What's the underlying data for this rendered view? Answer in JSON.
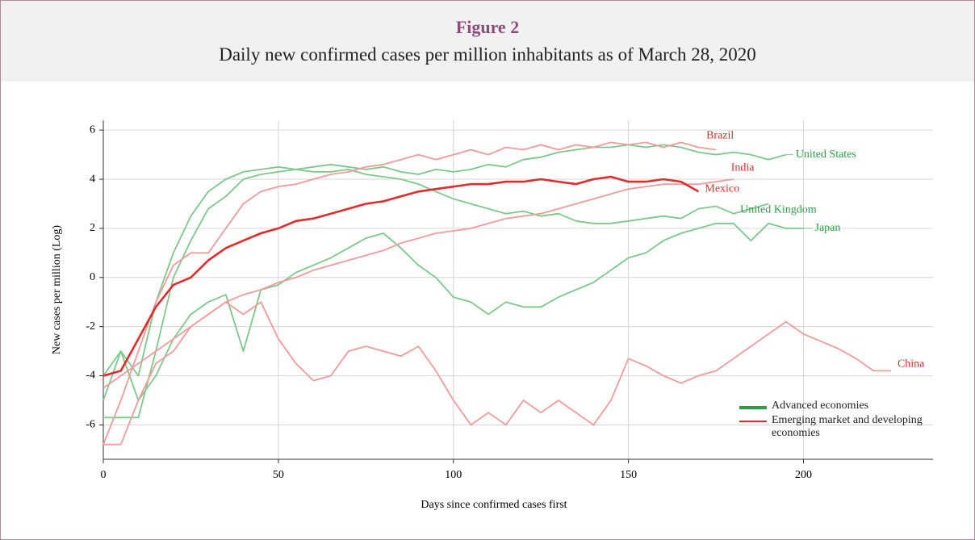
{
  "figure_label": "Figure 2",
  "chart_data": {
    "type": "line",
    "title": "Daily new confirmed cases per million inhabitants as of March 28, 2020",
    "x_label": "Days since confirmed cases first",
    "y_label": "New cases per million (Log)",
    "xlim": [
      0,
      237
    ],
    "ylim": [
      -7.4,
      6.4
    ],
    "xticks": [
      0,
      50,
      100,
      150,
      200
    ],
    "yticks": [
      -6,
      -4,
      -2,
      0,
      2,
      4,
      6
    ],
    "grid": true,
    "legend_position": "lower right",
    "legend": [
      {
        "label": "Advanced economies",
        "color": "#2e9e45"
      },
      {
        "label": "Emerging market and developing economies",
        "color": "#e32b2b"
      }
    ],
    "x": [
      0,
      5,
      10,
      15,
      20,
      25,
      30,
      35,
      40,
      45,
      50,
      55,
      60,
      65,
      70,
      75,
      80,
      85,
      90,
      95,
      100,
      105,
      110,
      115,
      120,
      125,
      130,
      135,
      140,
      145,
      150,
      155,
      160,
      165,
      170,
      175,
      180,
      185,
      190,
      195,
      200,
      205,
      210,
      215,
      220,
      225
    ],
    "series": [
      {
        "name": "United States",
        "color": "#7cc98a",
        "width": 1.8,
        "values": [
          -5,
          -3,
          -4,
          -1,
          1,
          2.5,
          3.5,
          4,
          4.3,
          4.4,
          4.5,
          4.4,
          4.5,
          4.6,
          4.5,
          4.4,
          4.5,
          4.3,
          4.2,
          4.4,
          4.3,
          4.4,
          4.6,
          4.5,
          4.8,
          4.9,
          5.1,
          5.2,
          5.3,
          5.3,
          5.4,
          5.3,
          5.4,
          5.3,
          5.1,
          5,
          5.1,
          5,
          4.8,
          5,
          null,
          null,
          null,
          null,
          null,
          null
        ]
      },
      {
        "name": "United Kingdom",
        "color": "#7cc98a",
        "width": 1.8,
        "values": [
          -5.7,
          -5.7,
          -5.7,
          -3,
          0,
          1.5,
          2.8,
          3.3,
          4,
          4.2,
          4.3,
          4.4,
          4.3,
          4.3,
          4.4,
          4.2,
          4.1,
          4,
          3.8,
          3.5,
          3.2,
          3,
          2.8,
          2.6,
          2.7,
          2.5,
          2.6,
          2.3,
          2.2,
          2.2,
          2.3,
          2.4,
          2.5,
          2.4,
          2.8,
          2.9,
          2.6,
          2.8,
          3,
          null,
          null,
          null,
          null,
          null,
          null,
          null
        ]
      },
      {
        "name": "Japan",
        "color": "#7cc98a",
        "width": 1.8,
        "values": [
          -4,
          -3,
          -5,
          -4,
          -2.5,
          -1.5,
          -1,
          -0.7,
          -3,
          -0.5,
          -0.3,
          0.2,
          0.5,
          0.8,
          1.2,
          1.6,
          1.8,
          1.2,
          0.5,
          0,
          -0.8,
          -1,
          -1.5,
          -1,
          -1.2,
          -1.2,
          -0.8,
          -0.5,
          -0.2,
          0.3,
          0.8,
          1,
          1.5,
          1.8,
          2,
          2.2,
          2.2,
          1.5,
          2.2,
          2,
          2,
          null,
          null,
          null,
          null,
          null
        ]
      },
      {
        "name": "Brazil",
        "color": "#f39a9a",
        "width": 1.8,
        "values": [
          -6.8,
          -5,
          -3,
          -1,
          0.5,
          1,
          1,
          2,
          3,
          3.5,
          3.7,
          3.8,
          4,
          4.2,
          4.3,
          4.5,
          4.6,
          4.8,
          5,
          4.8,
          5,
          5.2,
          5,
          5.3,
          5.2,
          5.4,
          5.2,
          5.4,
          5.3,
          5.5,
          5.4,
          5.5,
          5.3,
          5.5,
          5.3,
          5.2,
          null,
          null,
          null,
          null,
          null,
          null,
          null,
          null,
          null,
          null
        ]
      },
      {
        "name": "India",
        "color": "#f39a9a",
        "width": 1.8,
        "values": [
          -4.5,
          -4,
          -3.5,
          -3,
          -2.5,
          -2,
          -1.5,
          -1,
          -0.7,
          -0.5,
          -0.2,
          0,
          0.3,
          0.5,
          0.7,
          0.9,
          1.1,
          1.4,
          1.6,
          1.8,
          1.9,
          2,
          2.2,
          2.4,
          2.5,
          2.6,
          2.8,
          3,
          3.2,
          3.4,
          3.6,
          3.7,
          3.8,
          3.8,
          3.8,
          3.9,
          4,
          null,
          null,
          null,
          null,
          null,
          null,
          null,
          null,
          null
        ]
      },
      {
        "name": "Mexico",
        "color": "#e32b2b",
        "width": 2.6,
        "values": [
          -4,
          -3.8,
          -2.5,
          -1.2,
          -0.3,
          0,
          0.7,
          1.2,
          1.5,
          1.8,
          2,
          2.3,
          2.4,
          2.6,
          2.8,
          3,
          3.1,
          3.3,
          3.5,
          3.6,
          3.7,
          3.8,
          3.8,
          3.9,
          3.9,
          4,
          3.9,
          3.8,
          4,
          4.1,
          3.9,
          3.9,
          4,
          3.9,
          3.5,
          null,
          null,
          null,
          null,
          null,
          null,
          null,
          null,
          null,
          null,
          null
        ]
      },
      {
        "name": "China",
        "color": "#f39a9a",
        "width": 1.8,
        "values": [
          -6.8,
          -6.8,
          -5,
          -3.5,
          -3,
          -2,
          -1.5,
          -1,
          -1.5,
          -1,
          -2.5,
          -3.5,
          -4.2,
          -4,
          -3,
          -2.8,
          -3,
          -3.2,
          -2.8,
          -3.8,
          -5,
          -6,
          -5.5,
          -6,
          -5,
          -5.5,
          -5,
          -5.5,
          -6,
          -5,
          -3.3,
          -3.6,
          -4,
          -4.3,
          -4,
          -3.8,
          -3.3,
          -2.8,
          -2.3,
          -1.8,
          -2.3,
          -2.6,
          -2.9,
          -3.3,
          -3.8,
          -3.8
        ]
      }
    ]
  }
}
